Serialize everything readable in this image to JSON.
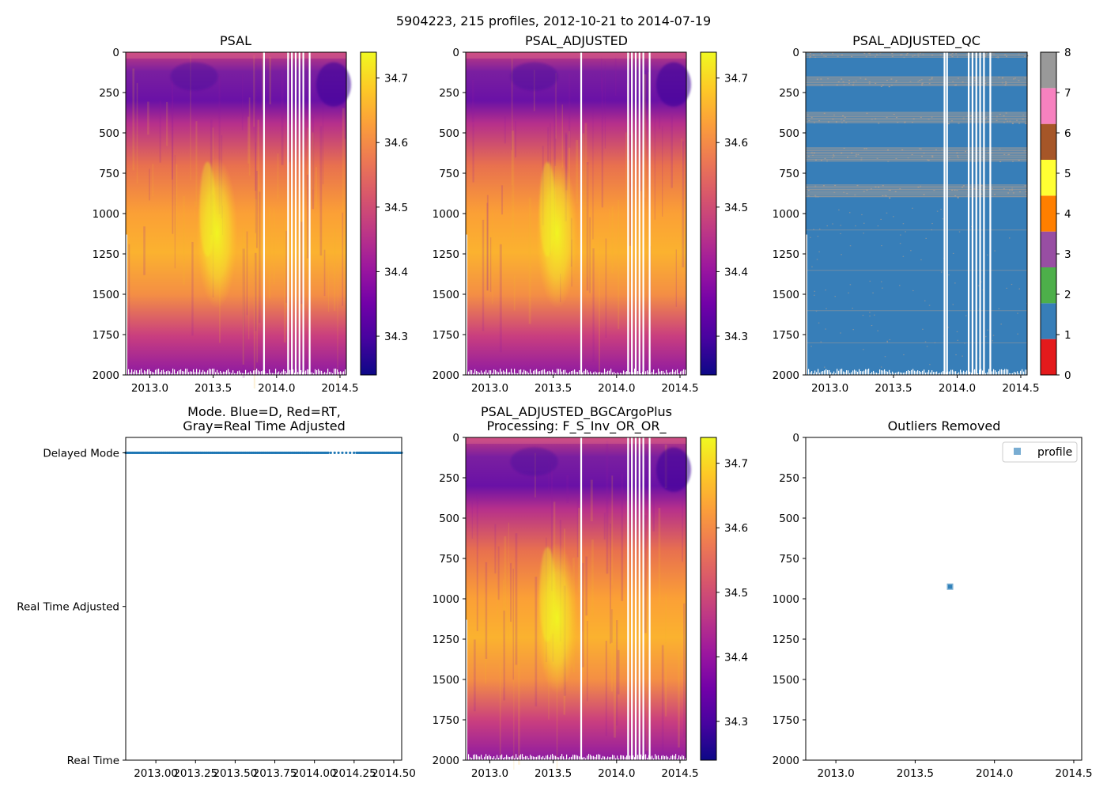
{
  "figure": {
    "suptitle": "5904223, 215 profiles, 2012-10-21 to 2014-07-19"
  },
  "colors": {
    "plasma": [
      "#0d0887",
      "#46039f",
      "#7201a8",
      "#9c179e",
      "#bd3786",
      "#d8576b",
      "#ed7953",
      "#fb9f3a",
      "#fdca26",
      "#f0f921"
    ],
    "qc_colorbar": [
      "#e41a1c",
      "#377eb8",
      "#4daf4a",
      "#984ea3",
      "#ff7f00",
      "#ffff33",
      "#a65628",
      "#f781bf",
      "#999999"
    ],
    "mode_points": "#1f77b4",
    "qc_background": "#377eb8",
    "qc_flag_gray": "#999999"
  },
  "chart_data": [
    {
      "id": "psal",
      "type": "heatmap",
      "title": "PSAL",
      "xlim": [
        2012.81,
        2014.55
      ],
      "ylim": [
        2000,
        0
      ],
      "xticks": [
        2013.0,
        2013.5,
        2014.0,
        2014.5
      ],
      "xtick_labels": [
        "2013.0",
        "2013.5",
        "2014.0",
        "2014.5"
      ],
      "yticks": [
        0,
        250,
        500,
        750,
        1000,
        1250,
        1500,
        1750,
        2000
      ],
      "ytick_labels": [
        "0",
        "250",
        "500",
        "750",
        "1000",
        "1250",
        "1500",
        "1750",
        "2000"
      ],
      "colorbar": {
        "cmap": "plasma_r",
        "range": [
          34.24,
          34.74
        ],
        "ticks": [
          34.3,
          34.4,
          34.5,
          34.6,
          34.7
        ],
        "tick_labels": [
          "34.3",
          "34.4",
          "34.5",
          "34.6",
          "34.7"
        ]
      },
      "profile_gaps": [
        2013.9,
        2014.09,
        2014.12,
        2014.15,
        2014.18,
        2014.21,
        2014.26
      ]
    },
    {
      "id": "psal_adjusted",
      "type": "heatmap",
      "title": "PSAL_ADJUSTED",
      "xlim": [
        2012.81,
        2014.55
      ],
      "ylim": [
        2000,
        0
      ],
      "xticks": [
        2013.0,
        2013.5,
        2014.0,
        2014.5
      ],
      "xtick_labels": [
        "2013.0",
        "2013.5",
        "2014.0",
        "2014.5"
      ],
      "yticks": [
        0,
        250,
        500,
        750,
        1000,
        1250,
        1500,
        1750,
        2000
      ],
      "ytick_labels": [
        "0",
        "250",
        "500",
        "750",
        "1000",
        "1250",
        "1500",
        "1750",
        "2000"
      ],
      "colorbar": {
        "cmap": "plasma_r",
        "range": [
          34.24,
          34.74
        ],
        "ticks": [
          34.3,
          34.4,
          34.5,
          34.6,
          34.7
        ],
        "tick_labels": [
          "34.3",
          "34.4",
          "34.5",
          "34.6",
          "34.7"
        ]
      },
      "profile_gaps": [
        2013.72,
        2014.09,
        2014.12,
        2014.15,
        2014.18,
        2014.21,
        2014.26
      ]
    },
    {
      "id": "psal_adjusted_qc",
      "type": "heatmap",
      "title": "PSAL_ADJUSTED_QC",
      "xlim": [
        2012.81,
        2014.55
      ],
      "ylim": [
        2000,
        0
      ],
      "xticks": [
        2013.0,
        2013.5,
        2014.0,
        2014.5
      ],
      "xtick_labels": [
        "2013.0",
        "2013.5",
        "2014.0",
        "2014.5"
      ],
      "yticks": [
        0,
        250,
        500,
        750,
        1000,
        1250,
        1500,
        1750,
        2000
      ],
      "ytick_labels": [
        "0",
        "250",
        "500",
        "750",
        "1000",
        "1250",
        "1500",
        "1750",
        "2000"
      ],
      "dominant_flag": 1,
      "flag_bands_depth": [
        [
          0,
          30
        ],
        [
          150,
          210
        ],
        [
          370,
          440
        ],
        [
          590,
          680
        ],
        [
          820,
          900
        ]
      ],
      "colorbar": {
        "cmap": "qc_categorical",
        "range": [
          0,
          8
        ],
        "ticks": [
          0,
          1,
          2,
          3,
          4,
          5,
          6,
          7,
          8
        ],
        "tick_labels": [
          "0",
          "1",
          "2",
          "3",
          "4",
          "5",
          "6",
          "7",
          "8"
        ]
      },
      "profile_gaps": [
        2013.9,
        2013.92,
        2014.09,
        2014.12,
        2014.15,
        2014.18,
        2014.21,
        2014.26
      ]
    },
    {
      "id": "mode",
      "type": "scatter",
      "title": "Mode. Blue=D, Red=RT,\nGray=Real Time Adjusted",
      "title_lines": [
        "Mode. Blue=D, Red=RT,",
        "Gray=Real Time Adjusted"
      ],
      "xlim": [
        2012.81,
        2014.55
      ],
      "yticks": [
        0,
        1,
        2
      ],
      "ytick_labels": [
        "Real Time",
        "Real Time Adjusted",
        "Delayed Mode"
      ],
      "xticks": [
        2013.0,
        2013.25,
        2013.5,
        2013.75,
        2014.0,
        2014.25,
        2014.5
      ],
      "xtick_labels": [
        "2013.00",
        "2013.25",
        "2013.50",
        "2013.75",
        "2014.00",
        "2014.25",
        "2014.50"
      ],
      "series": [
        {
          "name": "Delayed Mode",
          "y": 2,
          "x_range": [
            2012.81,
            2014.55
          ],
          "count": 215
        }
      ]
    },
    {
      "id": "bgc_argo_plus",
      "type": "heatmap",
      "title": "PSAL_ADJUSTED_BGCArgoPlus\nProcessing: F_S_Inv_OR_OR_",
      "title_lines": [
        "PSAL_ADJUSTED_BGCArgoPlus",
        "Processing: F_S_Inv_OR_OR_"
      ],
      "xlim": [
        2012.81,
        2014.55
      ],
      "ylim": [
        2000,
        0
      ],
      "xticks": [
        2013.0,
        2013.5,
        2014.0,
        2014.5
      ],
      "xtick_labels": [
        "2013.0",
        "2013.5",
        "2014.0",
        "2014.5"
      ],
      "yticks": [
        0,
        250,
        500,
        750,
        1000,
        1250,
        1500,
        1750,
        2000
      ],
      "ytick_labels": [
        "0",
        "250",
        "500",
        "750",
        "1000",
        "1250",
        "1500",
        "1750",
        "2000"
      ],
      "colorbar": {
        "cmap": "plasma_r",
        "range": [
          34.24,
          34.74
        ],
        "ticks": [
          34.3,
          34.4,
          34.5,
          34.6,
          34.7
        ],
        "tick_labels": [
          "34.3",
          "34.4",
          "34.5",
          "34.6",
          "34.7"
        ]
      },
      "profile_gaps": [
        2013.72,
        2014.09,
        2014.12,
        2014.15,
        2014.18,
        2014.21,
        2014.26
      ]
    },
    {
      "id": "outliers",
      "type": "scatter",
      "title": "Outliers Removed",
      "xlim": [
        2012.81,
        2014.55
      ],
      "ylim": [
        2000,
        0
      ],
      "xticks": [
        2013.0,
        2013.5,
        2014.0,
        2014.5
      ],
      "xtick_labels": [
        "2013.0",
        "2013.5",
        "2014.0",
        "2014.5"
      ],
      "yticks": [
        0,
        250,
        500,
        750,
        1000,
        1250,
        1500,
        1750,
        2000
      ],
      "ytick_labels": [
        "0",
        "250",
        "500",
        "750",
        "1000",
        "1250",
        "1500",
        "1750",
        "2000"
      ],
      "legend": {
        "label": "profile",
        "loc": "upper right"
      },
      "series": [
        {
          "name": "profile",
          "points": [
            [
              2013.72,
              925
            ]
          ]
        }
      ]
    }
  ]
}
